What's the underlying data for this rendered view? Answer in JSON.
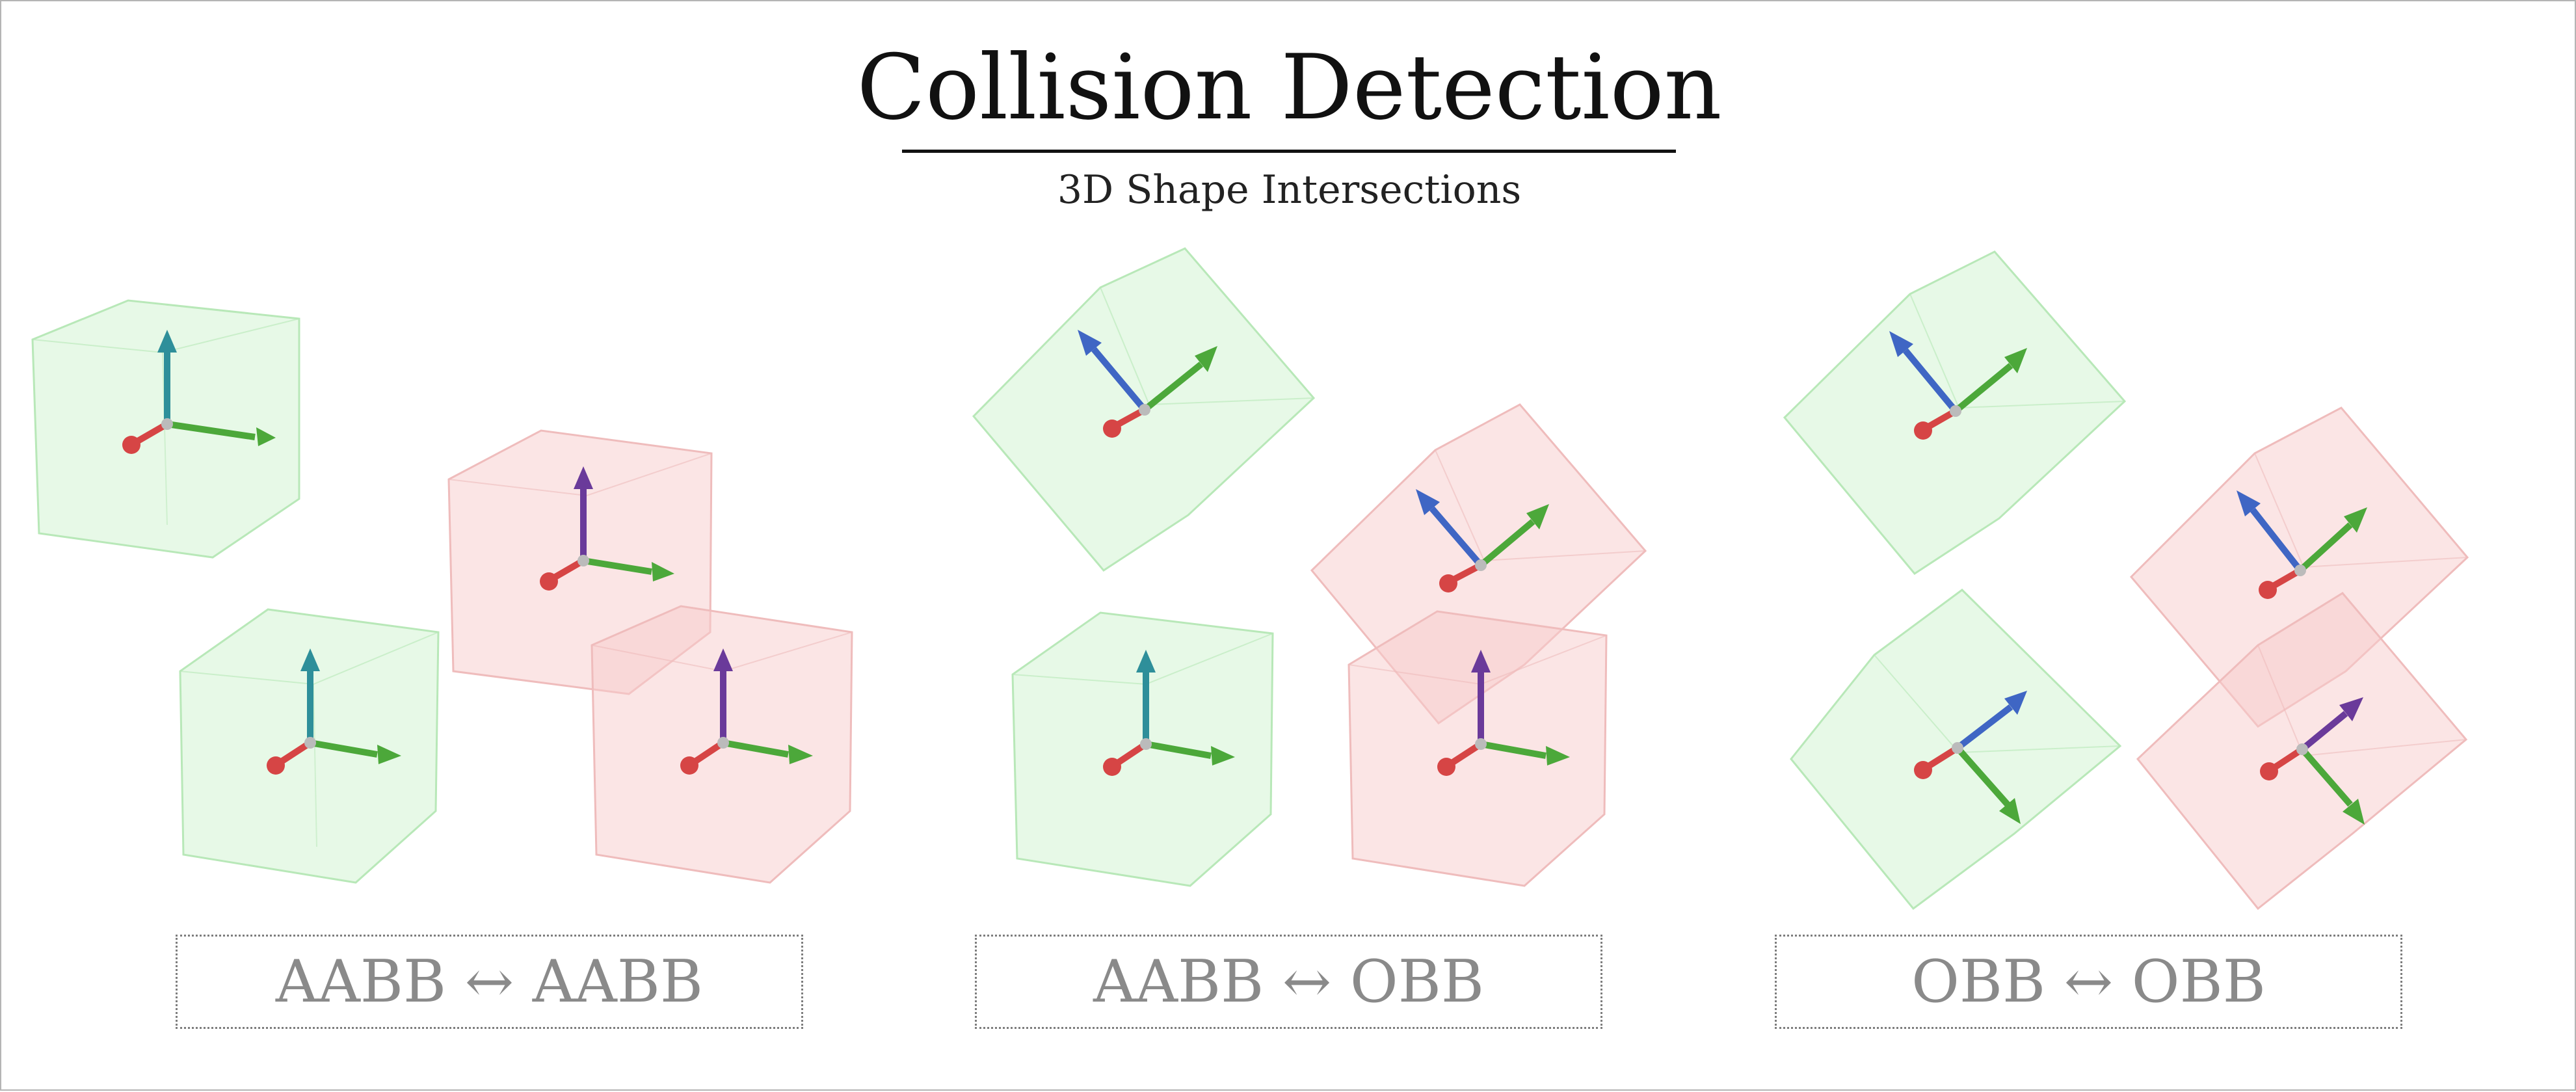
{
  "title": "Collision Detection",
  "subtitle": "3D Shape Intersections",
  "panels": [
    {
      "label": "AABB ↔ AABB"
    },
    {
      "label": "AABB ↔ OBB"
    },
    {
      "label": "OBB ↔ OBB"
    }
  ],
  "colors": {
    "green_face": "#c9f2c9",
    "green_edge": "#b8e8b8",
    "red_face": "#f8cccc",
    "red_edge": "#efbcbc",
    "axis_x": "#d64545",
    "axis_y": "#4ca83a",
    "axis_z_blue": "#3f66c4",
    "axis_z_purple": "#6a3a9a",
    "axis_z_teal": "#2e8f9a"
  }
}
